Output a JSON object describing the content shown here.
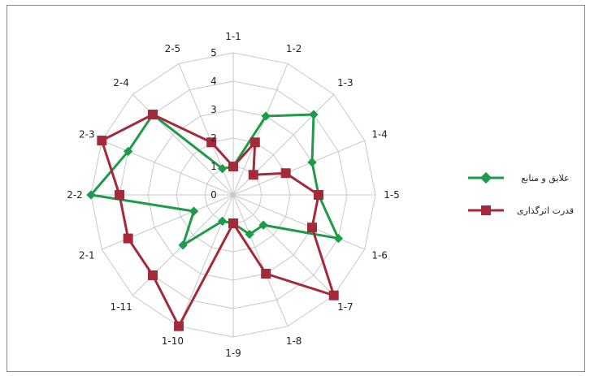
{
  "chart_data": {
    "type": "radar",
    "categories": [
      "1-1",
      "1-2",
      "1-3",
      "1-4",
      "1-5",
      "1-6",
      "1-7",
      "1-8",
      "1-9",
      "1-10",
      "1-11",
      "2-1",
      "2-2",
      "2-3",
      "2-4",
      "2-5"
    ],
    "rlim": [
      0,
      5
    ],
    "ticks": [
      "0",
      "1",
      "2",
      "3",
      "4",
      "5"
    ],
    "grid": true,
    "legend_position": "right",
    "series": [
      {
        "name": "علایق و منابع",
        "color": "#1e9a49",
        "marker": "diamond",
        "values": [
          1,
          3,
          4,
          3,
          3,
          4,
          1.5,
          1.5,
          1,
          1,
          2.5,
          1.5,
          5,
          4,
          4,
          1
        ]
      },
      {
        "name": "قدرت اثرگذاری",
        "color": "#a32a3a",
        "marker": "square",
        "values": [
          1,
          2,
          1,
          2,
          3,
          3,
          5,
          3,
          1,
          5,
          4,
          4,
          4,
          5,
          4,
          2
        ]
      }
    ]
  }
}
